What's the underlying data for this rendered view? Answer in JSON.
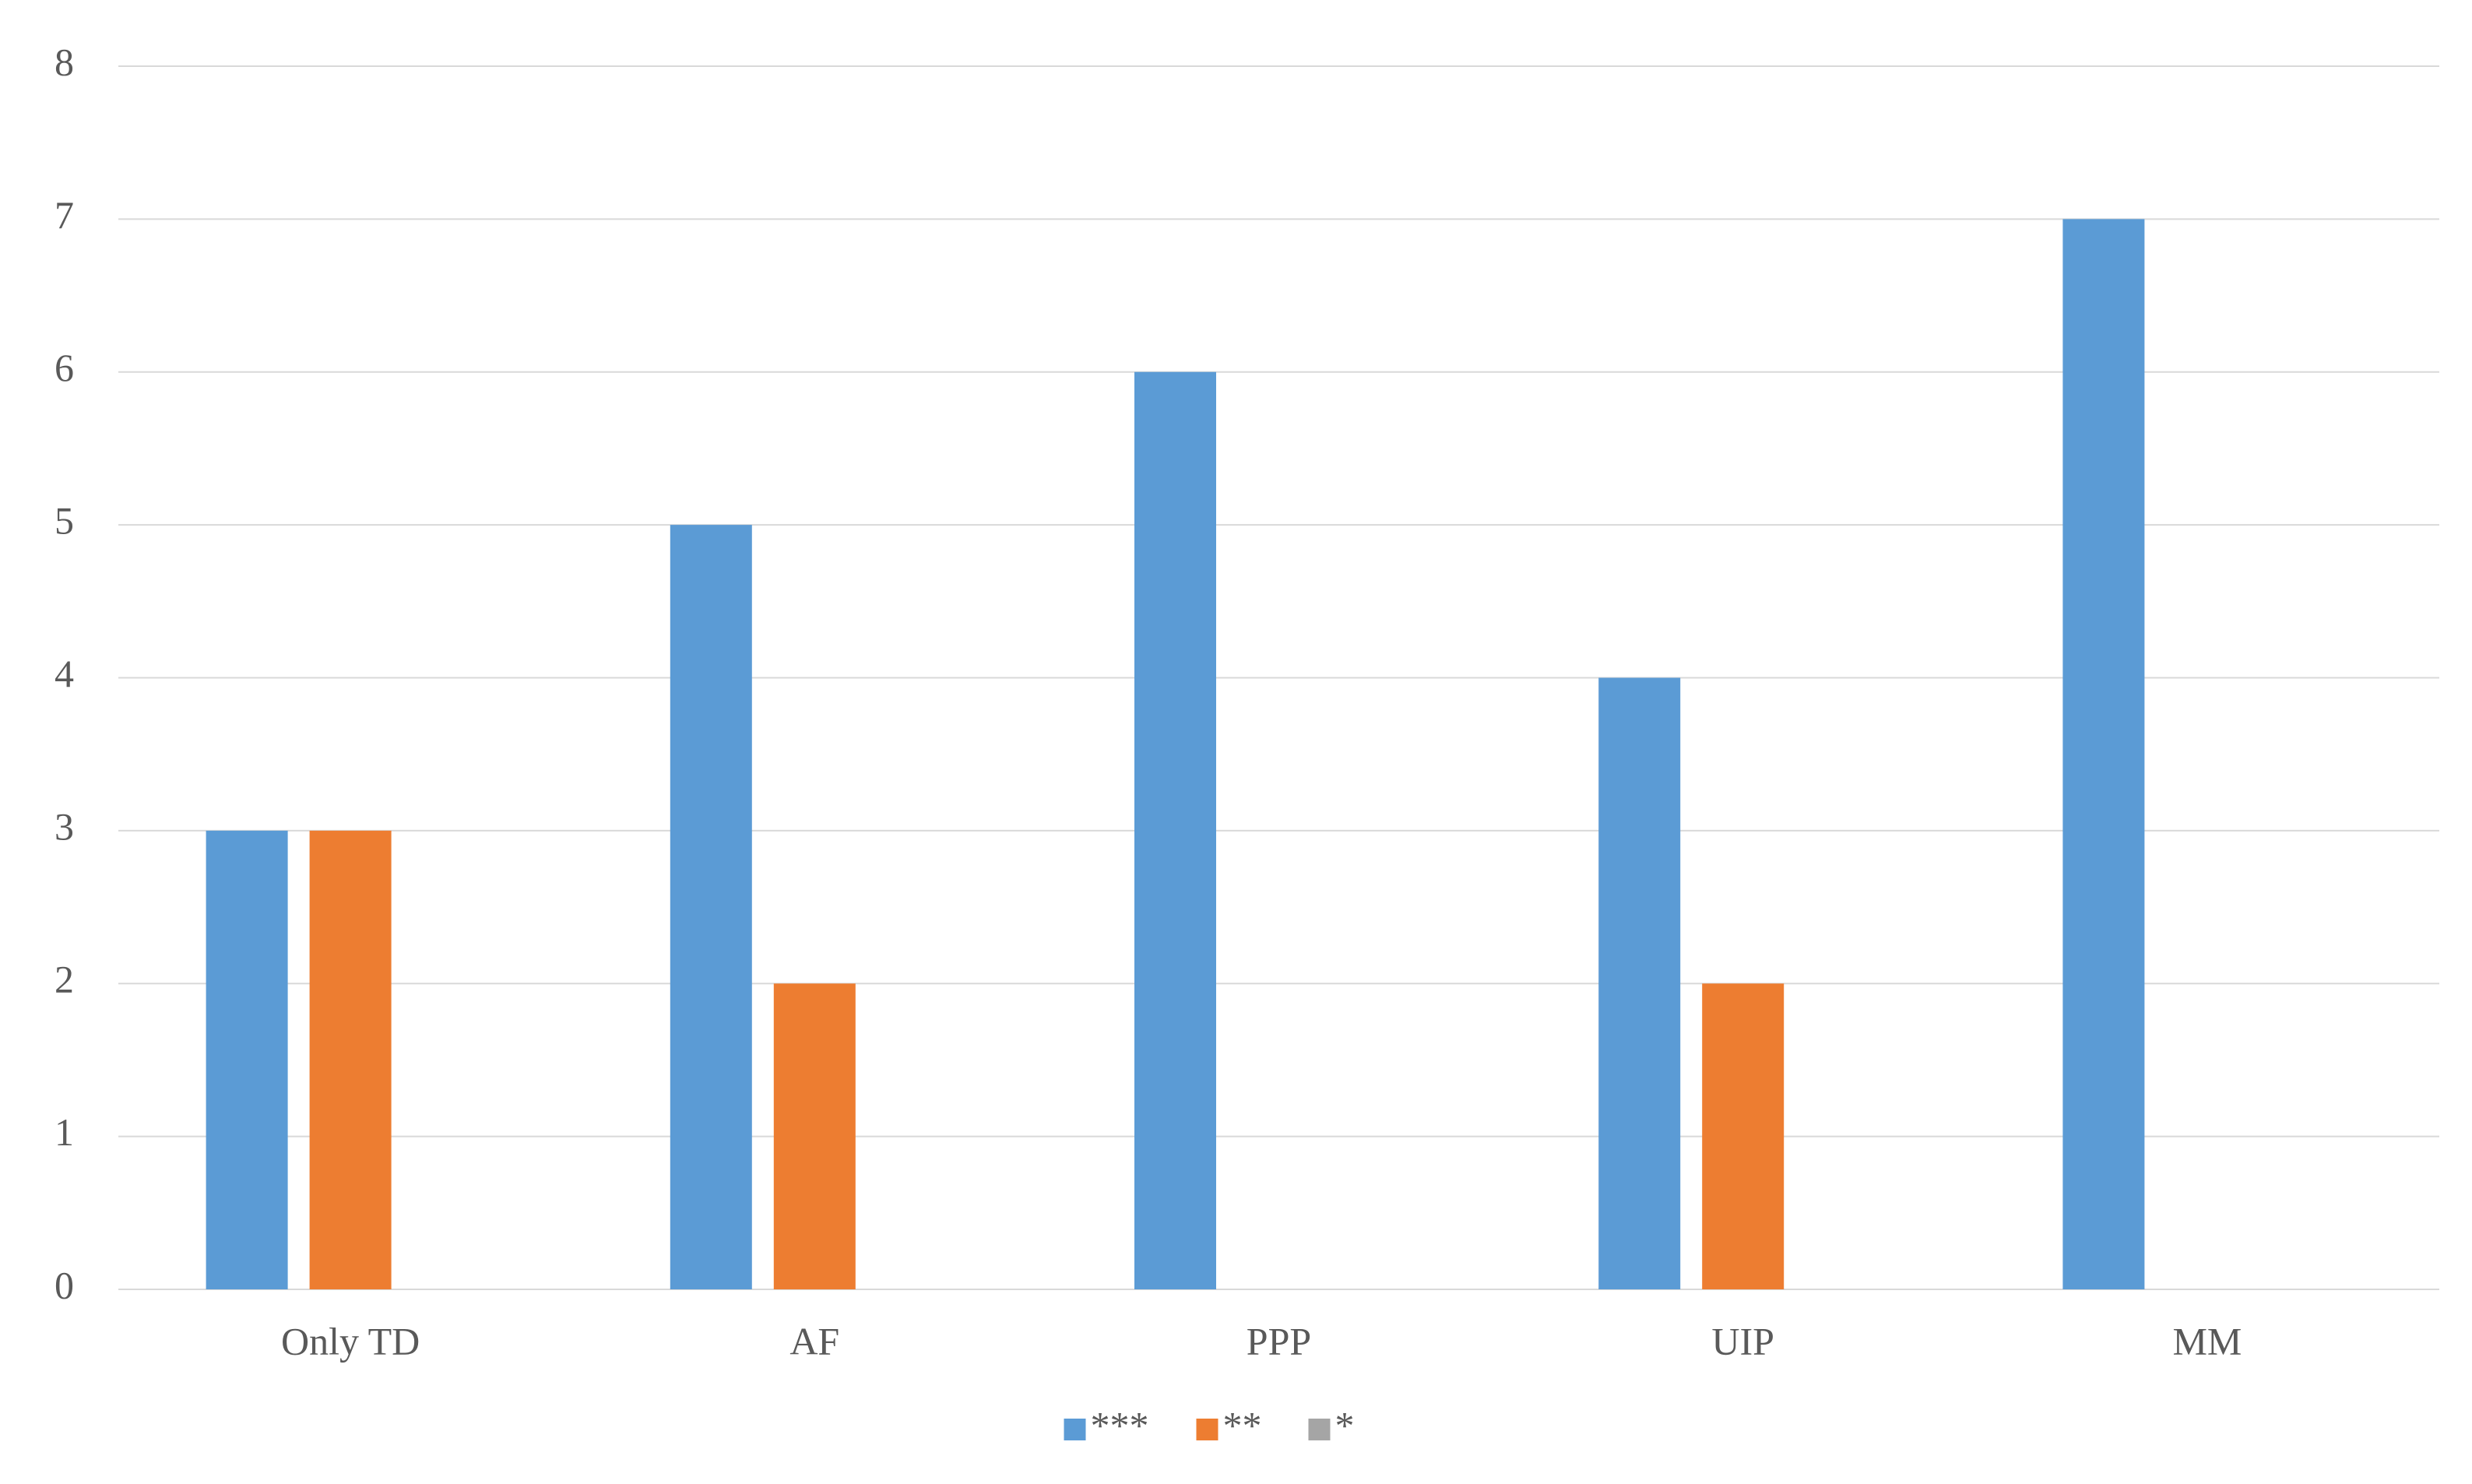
{
  "chart_data": {
    "type": "bar",
    "categories": [
      "Only TD",
      "AF",
      "PPP",
      "UIP",
      "MM"
    ],
    "series": [
      {
        "name": "***",
        "color": "#5b9bd5",
        "values": [
          3,
          5,
          6,
          4,
          7
        ]
      },
      {
        "name": "**",
        "color": "#ed7d31",
        "values": [
          3,
          2,
          0,
          2,
          0
        ]
      },
      {
        "name": "*",
        "color": "#a5a5a5",
        "values": [
          0,
          0,
          0,
          0,
          0
        ]
      }
    ],
    "ylim": [
      0,
      8
    ],
    "yticks": [
      0,
      1,
      2,
      3,
      4,
      5,
      6,
      7,
      8
    ],
    "grid": true,
    "legend": "bottom"
  }
}
